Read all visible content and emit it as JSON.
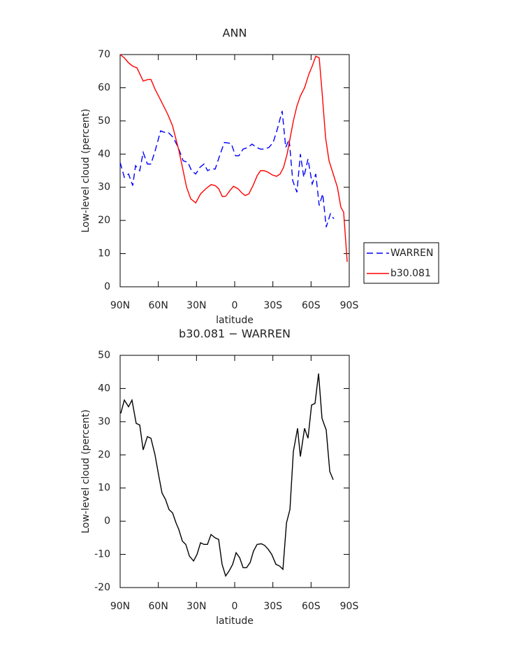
{
  "chart_data": [
    {
      "type": "line",
      "title": "ANN",
      "xlabel": "latitude",
      "ylabel": "Low-level cloud (percent)",
      "xlim": [
        90,
        -90
      ],
      "ylim": [
        0,
        70
      ],
      "xticks": [
        {
          "value": 90,
          "label": "90N"
        },
        {
          "value": 60,
          "label": "60N"
        },
        {
          "value": 30,
          "label": "30N"
        },
        0,
        {
          "value": -30,
          "label": "30S"
        },
        {
          "value": -60,
          "label": "60S"
        },
        {
          "value": -90,
          "label": "90S"
        }
      ],
      "yticks": [
        0,
        10,
        20,
        30,
        40,
        50,
        60,
        70
      ],
      "legend": "right",
      "series": [
        {
          "name": "WARREN",
          "color": "#0000ff",
          "dash": "dashed",
          "x": [
            90,
            86.7,
            83.4,
            80.1,
            77.9,
            74.6,
            71.9,
            68.6,
            65.8,
            62.5,
            58.2,
            54.9,
            52.1,
            48.3,
            44.4,
            40.5,
            36.7,
            33.9,
            30.6,
            27.3,
            24.1,
            21.3,
            18.6,
            15.3,
            11.4,
            8.1,
            2.7,
            -0.6,
            -3.3,
            -6.6,
            -10.4,
            -13.7,
            -17.0,
            -20.3,
            -23.6,
            -26.9,
            -30.2,
            -33.5,
            -37.3,
            -40.1,
            -42.8,
            -45.6,
            -48.9,
            -51.6,
            -54.3,
            -57.6,
            -60.9,
            -63.7,
            -66.4,
            -69.2,
            -71.9,
            -75.2,
            -77.9
          ],
          "values": [
            37.5,
            33,
            34,
            30.5,
            36.5,
            35,
            40.5,
            37,
            37,
            41,
            47,
            46.5,
            46.5,
            45,
            42,
            38,
            37.5,
            35,
            34,
            36,
            37,
            35,
            35.5,
            35.5,
            40,
            43.5,
            43.2,
            39.5,
            39.5,
            41.5,
            42,
            43,
            42,
            41.5,
            41.5,
            42,
            43.5,
            47.5,
            53,
            42,
            44.5,
            32,
            28.5,
            40,
            33,
            38.5,
            31,
            34,
            24.5,
            28,
            18,
            22,
            20.5
          ]
        },
        {
          "name": "b30.081",
          "color": "#ff0000",
          "dash": "solid",
          "x": [
            90,
            86.7,
            83.4,
            80.1,
            76.8,
            71.9,
            68.0,
            65.8,
            62.5,
            59.8,
            56.5,
            52.6,
            48.8,
            43.8,
            40.5,
            37.8,
            34.5,
            30.6,
            26.8,
            22.9,
            18.5,
            15.2,
            12.5,
            9.7,
            7.0,
            3.8,
            0.9,
            -2.8,
            -5.6,
            -8.3,
            -11.1,
            -14.4,
            -17.7,
            -20.3,
            -23.1,
            -26.4,
            -29.6,
            -32.9,
            -35.7,
            -38.4,
            -41.2,
            -43.4,
            -46.1,
            -48.9,
            -51.6,
            -54.9,
            -58.2,
            -60.9,
            -63.7,
            -66.4,
            -68.6,
            -71.4,
            -74.1,
            -77.4,
            -80.7,
            -83.4,
            -85.6,
            -88.4
          ],
          "values": [
            70,
            69,
            67.5,
            66.5,
            66,
            62,
            62.5,
            62.5,
            59.5,
            57.5,
            55,
            52,
            48.5,
            41,
            35,
            30,
            26.5,
            25.3,
            28,
            29.5,
            30.8,
            30.5,
            29.5,
            27.2,
            27.3,
            29,
            30.3,
            29.5,
            28.3,
            27.5,
            28,
            30.5,
            33.5,
            35,
            35,
            34.5,
            33.7,
            33.3,
            34,
            36,
            40,
            44.5,
            50,
            54.5,
            57.5,
            60,
            64,
            66.5,
            69.5,
            69,
            59,
            45,
            38,
            34,
            30,
            24,
            22.5,
            7.5
          ]
        }
      ]
    },
    {
      "type": "line",
      "title": "b30.081 − WARREN",
      "xlabel": "latitude",
      "ylabel": "Low-level cloud (percent)",
      "xlim": [
        90,
        -90
      ],
      "ylim": [
        -20,
        50
      ],
      "xticks": [
        {
          "value": 90,
          "label": "90N"
        },
        {
          "value": 60,
          "label": "60N"
        },
        {
          "value": 30,
          "label": "30N"
        },
        0,
        {
          "value": -30,
          "label": "30S"
        },
        {
          "value": -60,
          "label": "60S"
        },
        {
          "value": -90,
          "label": "90S"
        }
      ],
      "yticks": [
        -20,
        -10,
        0,
        10,
        20,
        30,
        40,
        50
      ],
      "series": [
        {
          "color": "#000000",
          "dash": "solid",
          "x": [
            89.5,
            86.7,
            83.4,
            80.7,
            77.4,
            74.6,
            71.9,
            68.6,
            65.8,
            62.6,
            59.8,
            57.1,
            54.3,
            51.6,
            48.8,
            46.1,
            43.9,
            41.1,
            38.4,
            35.6,
            32.3,
            29.6,
            26.8,
            24.1,
            21.4,
            18.6,
            15.4,
            12.6,
            9.9,
            7.1,
            4.4,
            1.6,
            -1.1,
            -3.9,
            -6.6,
            -9.3,
            -12.1,
            -14.8,
            -17.6,
            -20.9,
            -23.6,
            -26.4,
            -29.1,
            -32.4,
            -35.2,
            -37.9,
            -40.7,
            -43.4,
            -46.1,
            -49.4,
            -51.6,
            -54.9,
            -57.6,
            -60.4,
            -63.1,
            -65.9,
            -68.6,
            -71.9,
            -74.7,
            -77.4
          ],
          "values": [
            32.5,
            36.5,
            34.5,
            36.5,
            29.5,
            29,
            21.5,
            25.5,
            25,
            20,
            14,
            8.5,
            6.5,
            3.5,
            2.5,
            -0.5,
            -2.5,
            -6,
            -7,
            -10.5,
            -12,
            -10,
            -6.5,
            -7,
            -7,
            -4,
            -5,
            -5.5,
            -13,
            -16.5,
            -15,
            -13,
            -9.5,
            -11,
            -14,
            -14,
            -12.5,
            -9,
            -7,
            -6.8,
            -7.3,
            -8.5,
            -10,
            -13,
            -13.5,
            -14.5,
            -0.5,
            3.5,
            21,
            28,
            19.5,
            28,
            25,
            35,
            35.5,
            44.5,
            31,
            27.5,
            15,
            12.5
          ]
        }
      ]
    }
  ]
}
